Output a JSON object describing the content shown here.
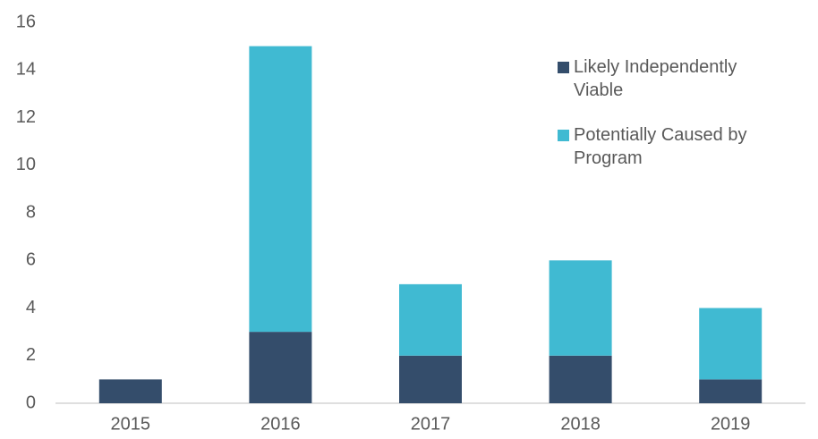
{
  "chart_data": {
    "type": "stacked_bar",
    "categories": [
      "2015",
      "2016",
      "2017",
      "2018",
      "2019"
    ],
    "series": [
      {
        "name": "Likely Independently Viable",
        "color": "#344d6b",
        "values": [
          1,
          3,
          2,
          2,
          1
        ]
      },
      {
        "name": "Potentially Caused by Program",
        "color": "#40bad2",
        "values": [
          0,
          12,
          3,
          4,
          3
        ]
      }
    ],
    "ylim": [
      0,
      16
    ],
    "yticks": [
      0,
      2,
      4,
      6,
      8,
      10,
      12,
      14,
      16
    ],
    "grid": false,
    "legend": "top-right"
  }
}
